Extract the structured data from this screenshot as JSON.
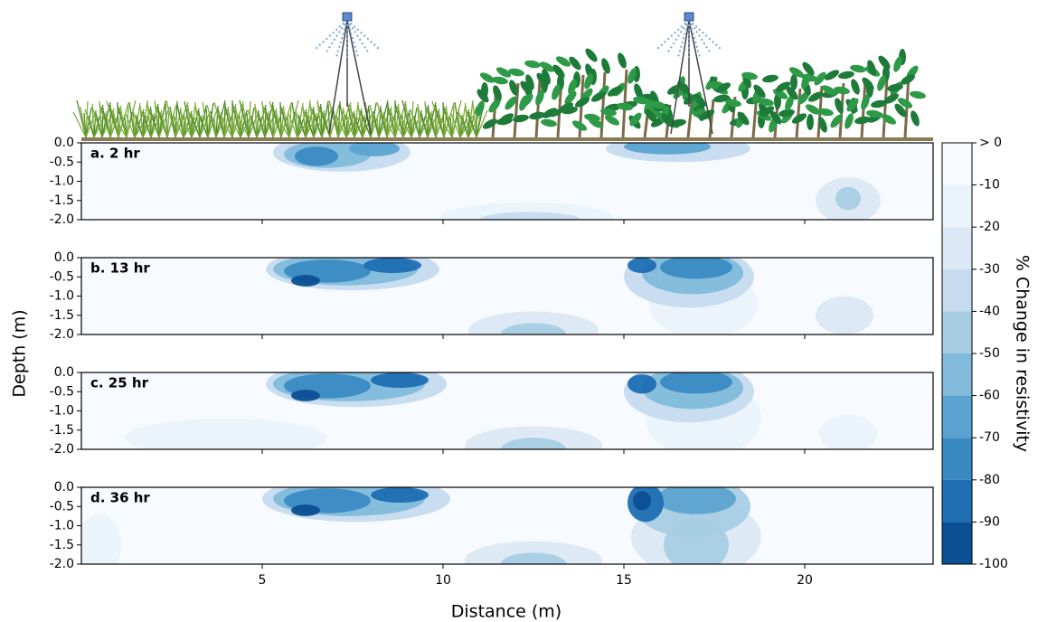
{
  "chart_data": {
    "type": "contour",
    "xlabel": "Distance (m)",
    "ylabel": "Depth (m)",
    "xlim": [
      0,
      23.55
    ],
    "xticks": [
      5,
      10,
      15,
      20
    ],
    "ylim": [
      -2,
      0
    ],
    "yticks": [
      {
        "value": 0,
        "label": "0.0"
      },
      {
        "value": -0.5,
        "label": "-0.5"
      },
      {
        "value": -1,
        "label": "-1.0"
      },
      {
        "value": -1.5,
        "label": "-1.5"
      },
      {
        "value": -2,
        "label": "-2.0"
      }
    ],
    "colorbar": {
      "label": "% Change in resistivity",
      "ticks": [
        {
          "value": 0,
          "label": "> 0"
        },
        -10,
        -20,
        -30,
        -40,
        -50,
        -60,
        -70,
        -80,
        -90,
        -100
      ],
      "colors": [
        "#f7fbff",
        "#eaf2fb",
        "#dbe9f6",
        "#c6dbef",
        "#a8cee4",
        "#82badb",
        "#5ba3d0",
        "#3a8ac2",
        "#1f6eb3",
        "#0b4f94"
      ]
    },
    "panels": [
      {
        "label": "a. 2 hr",
        "blobs": [
          {
            "x": 4,
            "depth": -1.6,
            "rx": 2.5,
            "ry": 0.5,
            "value": -5
          },
          {
            "x": 17,
            "depth": -1.1,
            "rx": 1.5,
            "ry": 1.0,
            "value": -5
          },
          {
            "x": 12.3,
            "depth": -1.95,
            "rx": 2.4,
            "ry": 0.4,
            "value": -15
          },
          {
            "x": 12.4,
            "depth": -2.0,
            "rx": 1.4,
            "ry": 0.2,
            "value": -35
          },
          {
            "x": 21.2,
            "depth": -1.5,
            "rx": 0.9,
            "ry": 0.6,
            "value": -25
          },
          {
            "x": 21.2,
            "depth": -1.45,
            "rx": 0.35,
            "ry": 0.3,
            "value": -45
          },
          {
            "x": 7.2,
            "depth": -0.25,
            "rx": 1.9,
            "ry": 0.5,
            "value": -35
          },
          {
            "x": 6.8,
            "depth": -0.3,
            "rx": 1.2,
            "ry": 0.35,
            "value": -55
          },
          {
            "x": 6.5,
            "depth": -0.35,
            "rx": 0.6,
            "ry": 0.25,
            "value": -75
          },
          {
            "x": 8.1,
            "depth": -0.15,
            "rx": 0.7,
            "ry": 0.2,
            "value": -65
          },
          {
            "x": 16.5,
            "depth": -0.15,
            "rx": 2.0,
            "ry": 0.35,
            "value": -35
          },
          {
            "x": 16.2,
            "depth": -0.1,
            "rx": 1.2,
            "ry": 0.2,
            "value": -65
          }
        ]
      },
      {
        "label": "b. 13 hr",
        "blobs": [
          {
            "x": 4,
            "depth": -1.6,
            "rx": 2.8,
            "ry": 0.5,
            "value": -5
          },
          {
            "x": 17.2,
            "depth": -1.2,
            "rx": 1.5,
            "ry": 0.9,
            "value": -15
          },
          {
            "x": 12.5,
            "depth": -1.9,
            "rx": 1.8,
            "ry": 0.5,
            "value": -25
          },
          {
            "x": 12.5,
            "depth": -2.0,
            "rx": 0.9,
            "ry": 0.3,
            "value": -45
          },
          {
            "x": 21.1,
            "depth": -1.5,
            "rx": 0.8,
            "ry": 0.5,
            "value": -25
          },
          {
            "x": 7.5,
            "depth": -0.3,
            "rx": 2.4,
            "ry": 0.55,
            "value": -35
          },
          {
            "x": 7.3,
            "depth": -0.3,
            "rx": 2.0,
            "ry": 0.42,
            "value": -55
          },
          {
            "x": 6.8,
            "depth": -0.35,
            "rx": 1.2,
            "ry": 0.3,
            "value": -75
          },
          {
            "x": 8.6,
            "depth": -0.2,
            "rx": 0.8,
            "ry": 0.2,
            "value": -85
          },
          {
            "x": 6.2,
            "depth": -0.6,
            "rx": 0.4,
            "ry": 0.15,
            "value": -95
          },
          {
            "x": 16.8,
            "depth": -0.5,
            "rx": 1.8,
            "ry": 0.8,
            "value": -35
          },
          {
            "x": 16.9,
            "depth": -0.4,
            "rx": 1.4,
            "ry": 0.55,
            "value": -55
          },
          {
            "x": 17,
            "depth": -0.25,
            "rx": 1.0,
            "ry": 0.3,
            "value": -75
          },
          {
            "x": 15.5,
            "depth": -0.2,
            "rx": 0.4,
            "ry": 0.2,
            "value": -85
          }
        ]
      },
      {
        "label": "c. 25 hr",
        "blobs": [
          {
            "x": 4,
            "depth": -1.7,
            "rx": 2.8,
            "ry": 0.5,
            "value": -15
          },
          {
            "x": 17.2,
            "depth": -1.2,
            "rx": 1.6,
            "ry": 1.0,
            "value": -15
          },
          {
            "x": 12.5,
            "depth": -1.9,
            "rx": 1.9,
            "ry": 0.5,
            "value": -25
          },
          {
            "x": 12.5,
            "depth": -2.0,
            "rx": 0.9,
            "ry": 0.3,
            "value": -45
          },
          {
            "x": 21.2,
            "depth": -1.6,
            "rx": 0.8,
            "ry": 0.5,
            "value": -15
          },
          {
            "x": 7.6,
            "depth": -0.3,
            "rx": 2.5,
            "ry": 0.6,
            "value": -35
          },
          {
            "x": 7.4,
            "depth": -0.3,
            "rx": 2.1,
            "ry": 0.45,
            "value": -55
          },
          {
            "x": 6.8,
            "depth": -0.35,
            "rx": 1.2,
            "ry": 0.32,
            "value": -75
          },
          {
            "x": 8.8,
            "depth": -0.2,
            "rx": 0.8,
            "ry": 0.2,
            "value": -85
          },
          {
            "x": 6.2,
            "depth": -0.6,
            "rx": 0.4,
            "ry": 0.15,
            "value": -95
          },
          {
            "x": 16.8,
            "depth": -0.5,
            "rx": 1.8,
            "ry": 0.8,
            "value": -35
          },
          {
            "x": 16.9,
            "depth": -0.4,
            "rx": 1.4,
            "ry": 0.55,
            "value": -55
          },
          {
            "x": 17,
            "depth": -0.25,
            "rx": 1.0,
            "ry": 0.3,
            "value": -75
          },
          {
            "x": 15.5,
            "depth": -0.3,
            "rx": 0.4,
            "ry": 0.25,
            "value": -85
          }
        ]
      },
      {
        "label": "d. 36 hr",
        "blobs": [
          {
            "x": 0.5,
            "depth": -1.5,
            "rx": 0.6,
            "ry": 0.8,
            "value": -15
          },
          {
            "x": 4,
            "depth": -1.7,
            "rx": 2.5,
            "ry": 0.4,
            "value": -5
          },
          {
            "x": 17.0,
            "depth": -1.3,
            "rx": 1.8,
            "ry": 1.0,
            "value": -25
          },
          {
            "x": 17.0,
            "depth": -1.5,
            "rx": 0.9,
            "ry": 0.7,
            "value": -45
          },
          {
            "x": 12.5,
            "depth": -1.9,
            "rx": 1.9,
            "ry": 0.5,
            "value": -25
          },
          {
            "x": 12.5,
            "depth": -2.0,
            "rx": 0.9,
            "ry": 0.3,
            "value": -45
          },
          {
            "x": 7.6,
            "depth": -0.3,
            "rx": 2.6,
            "ry": 0.6,
            "value": -35
          },
          {
            "x": 7.4,
            "depth": -0.3,
            "rx": 2.1,
            "ry": 0.45,
            "value": -55
          },
          {
            "x": 6.8,
            "depth": -0.35,
            "rx": 1.2,
            "ry": 0.32,
            "value": -75
          },
          {
            "x": 8.8,
            "depth": -0.2,
            "rx": 0.8,
            "ry": 0.2,
            "value": -85
          },
          {
            "x": 6.2,
            "depth": -0.6,
            "rx": 0.4,
            "ry": 0.15,
            "value": -95
          },
          {
            "x": 16.9,
            "depth": -0.5,
            "rx": 1.6,
            "ry": 0.8,
            "value": -45
          },
          {
            "x": 17,
            "depth": -0.3,
            "rx": 1.1,
            "ry": 0.4,
            "value": -65
          },
          {
            "x": 15.6,
            "depth": -0.4,
            "rx": 0.5,
            "ry": 0.5,
            "value": -85
          },
          {
            "x": 15.5,
            "depth": -0.35,
            "rx": 0.25,
            "ry": 0.25,
            "value": -95
          }
        ]
      }
    ]
  }
}
